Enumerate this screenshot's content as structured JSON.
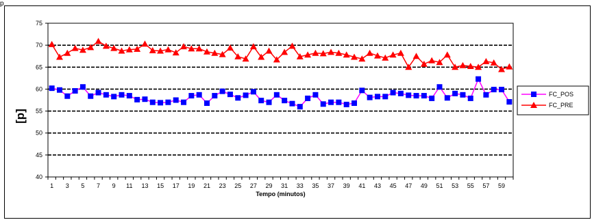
{
  "top_mark": "p",
  "chart_data": {
    "type": "line",
    "title": "",
    "xlabel": "Tempo (minutos)",
    "ylabel": "[p]",
    "ylim": [
      40,
      75
    ],
    "yticks": [
      40,
      45,
      50,
      55,
      60,
      65,
      70,
      75
    ],
    "x": [
      1,
      2,
      3,
      4,
      5,
      6,
      7,
      8,
      9,
      10,
      11,
      12,
      13,
      14,
      15,
      16,
      17,
      18,
      19,
      20,
      21,
      22,
      23,
      24,
      25,
      26,
      27,
      28,
      29,
      30,
      31,
      32,
      33,
      34,
      35,
      36,
      37,
      38,
      39,
      40,
      41,
      42,
      43,
      44,
      45,
      46,
      47,
      48,
      49,
      50,
      51,
      52,
      53,
      54,
      55,
      56,
      57,
      58,
      59,
      60
    ],
    "xtick_labels": [
      "1",
      "3",
      "5",
      "7",
      "9",
      "11",
      "13",
      "15",
      "17",
      "19",
      "21",
      "23",
      "25",
      "27",
      "29",
      "31",
      "33",
      "35",
      "37",
      "39",
      "41",
      "43",
      "45",
      "47",
      "49",
      "51",
      "53",
      "55",
      "57",
      "59"
    ],
    "grid": true,
    "legend_position": "right",
    "series": [
      {
        "name": "FC_POS",
        "color": "#ff00ff",
        "marker_color": "#0000ff",
        "marker": "square",
        "values": [
          60.2,
          59.8,
          58.4,
          59.6,
          60.5,
          58.4,
          59.2,
          58.7,
          58.3,
          58.7,
          58.5,
          57.6,
          57.7,
          57.0,
          56.9,
          57.0,
          57.5,
          57.0,
          58.5,
          58.7,
          56.8,
          58.5,
          59.5,
          58.8,
          58.0,
          58.6,
          59.4,
          57.4,
          57.0,
          58.7,
          57.4,
          56.7,
          56.0,
          57.9,
          58.7,
          56.6,
          57.0,
          57.0,
          56.5,
          56.8,
          59.7,
          58.1,
          58.3,
          58.3,
          59.2,
          59.0,
          58.6,
          58.5,
          58.5,
          57.9,
          60.5,
          58.0,
          59.0,
          58.7,
          57.9,
          62.3,
          58.7,
          59.9,
          59.9,
          57.1
        ]
      },
      {
        "name": "FC_PRE",
        "color": "#ff0000",
        "marker_color": "#ff0000",
        "marker": "triangle",
        "values": [
          70.2,
          67.3,
          68.2,
          69.3,
          68.9,
          69.5,
          70.9,
          69.8,
          69.3,
          68.7,
          69.0,
          69.1,
          70.3,
          68.8,
          68.7,
          69.0,
          68.3,
          69.7,
          69.2,
          69.2,
          68.5,
          68.2,
          67.9,
          69.4,
          67.4,
          66.9,
          69.7,
          67.3,
          68.7,
          66.7,
          68.4,
          69.8,
          67.4,
          67.8,
          68.2,
          68.1,
          68.4,
          68.2,
          67.8,
          67.3,
          66.9,
          68.2,
          67.6,
          67.1,
          67.8,
          68.2,
          65.0,
          67.5,
          65.7,
          66.5,
          66.1,
          67.8,
          65.0,
          65.4,
          65.2,
          65.0,
          66.3,
          66.0,
          64.5,
          65.1
        ]
      }
    ]
  }
}
